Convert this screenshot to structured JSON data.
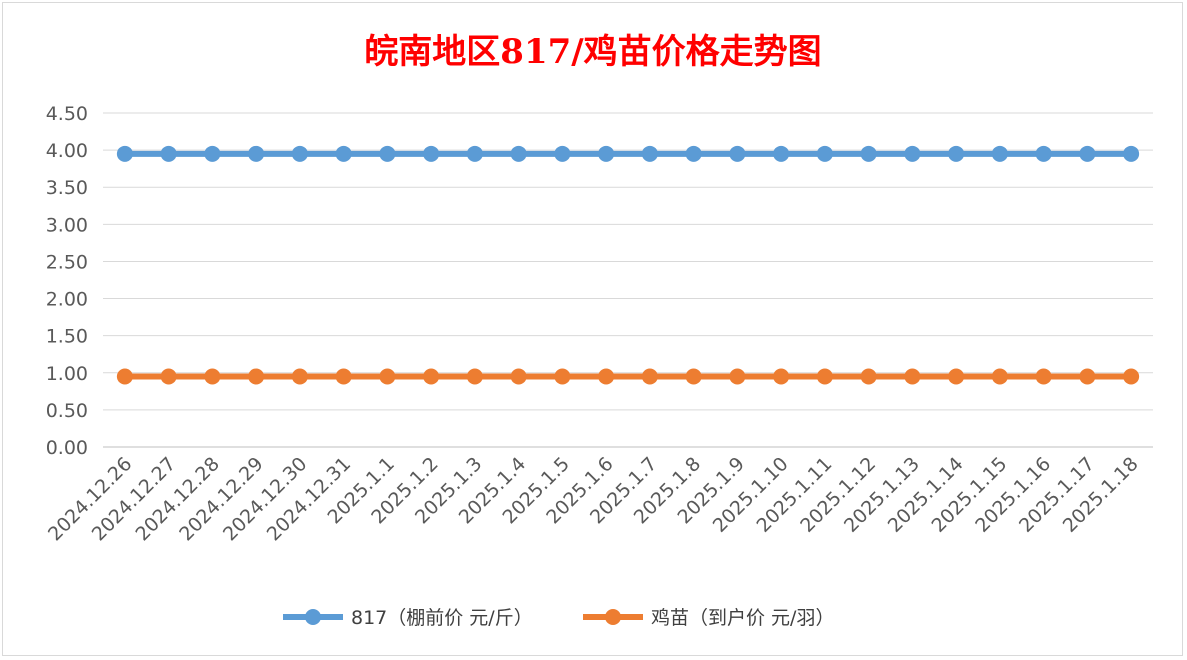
{
  "chart_data": {
    "type": "line",
    "title": "皖南地区817/鸡苗价格走势图",
    "xlabel": "",
    "ylabel": "",
    "categories": [
      "2024.12.26",
      "2024.12.27",
      "2024.12.28",
      "2024.12.29",
      "2024.12.30",
      "2024.12.31",
      "2025.1.1",
      "2025.1.2",
      "2025.1.3",
      "2025.1.4",
      "2025.1.5",
      "2025.1.6",
      "2025.1.7",
      "2025.1.8",
      "2025.1.9",
      "2025.1.10",
      "2025.1.11",
      "2025.1.12",
      "2025.1.13",
      "2025.1.14",
      "2025.1.15",
      "2025.1.16",
      "2025.1.17",
      "2025.1.18"
    ],
    "y_ticks": [
      "0.00",
      "0.50",
      "1.00",
      "1.50",
      "2.00",
      "2.50",
      "3.00",
      "3.50",
      "4.00",
      "4.50"
    ],
    "ylim": [
      0,
      4.5
    ],
    "grid": true,
    "legend_position": "bottom",
    "series": [
      {
        "name": "817（棚前价 元/斤）",
        "color": "#5b9bd5",
        "values": [
          3.95,
          3.95,
          3.95,
          3.95,
          3.95,
          3.95,
          3.95,
          3.95,
          3.95,
          3.95,
          3.95,
          3.95,
          3.95,
          3.95,
          3.95,
          3.95,
          3.95,
          3.95,
          3.95,
          3.95,
          3.95,
          3.95,
          3.95,
          3.95
        ]
      },
      {
        "name": "鸡苗（到户价 元/羽）",
        "color": "#ed7d31",
        "values": [
          0.95,
          0.95,
          0.95,
          0.95,
          0.95,
          0.95,
          0.95,
          0.95,
          0.95,
          0.95,
          0.95,
          0.95,
          0.95,
          0.95,
          0.95,
          0.95,
          0.95,
          0.95,
          0.95,
          0.95,
          0.95,
          0.95,
          0.95,
          0.95
        ]
      }
    ]
  }
}
